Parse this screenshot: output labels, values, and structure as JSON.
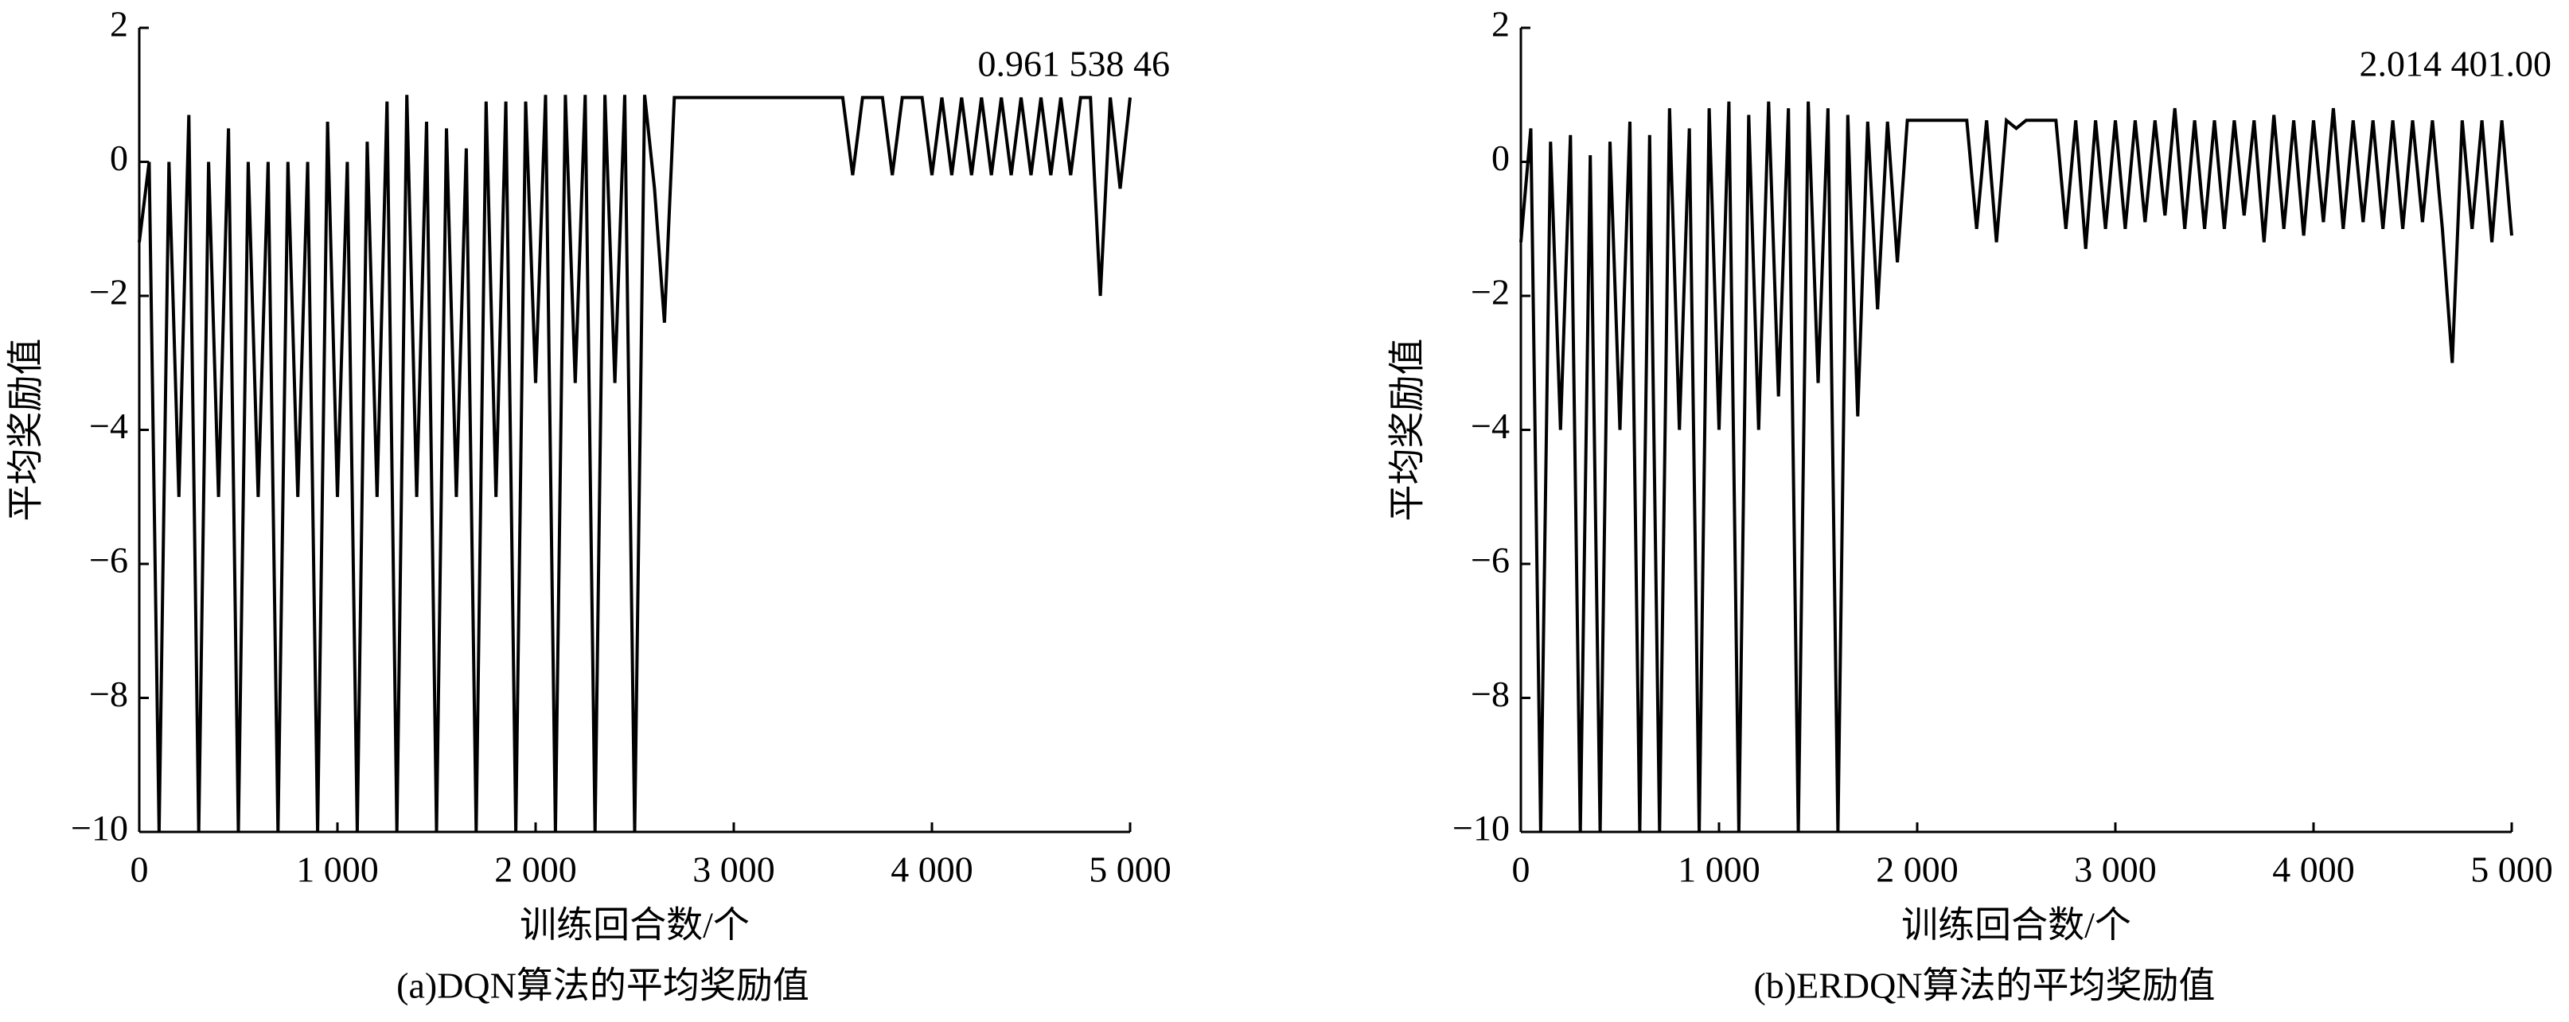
{
  "chart_data": [
    {
      "type": "line",
      "title": "(a)DQN算法的平均奖励值",
      "xlabel": "训练回合数/个",
      "ylabel": "平均奖励值",
      "annotation": "0.961 538 46",
      "color": "#000000",
      "x": [
        0,
        50,
        100,
        150,
        200,
        250,
        300,
        350,
        400,
        450,
        500,
        550,
        600,
        650,
        700,
        750,
        800,
        850,
        900,
        950,
        1000,
        1050,
        1100,
        1150,
        1200,
        1250,
        1300,
        1350,
        1400,
        1450,
        1500,
        1550,
        1600,
        1650,
        1700,
        1750,
        1800,
        1850,
        1900,
        1950,
        2000,
        2050,
        2100,
        2150,
        2200,
        2250,
        2300,
        2350,
        2400,
        2450,
        2500,
        2550,
        2600,
        2650,
        2700,
        2750,
        2800,
        2850,
        2900,
        2950,
        3000,
        3050,
        3100,
        3150,
        3200,
        3250,
        3300,
        3350,
        3400,
        3450,
        3500,
        3550,
        3600,
        3650,
        3700,
        3750,
        3800,
        3850,
        3900,
        3950,
        4000,
        4050,
        4100,
        4150,
        4200,
        4250,
        4300,
        4350,
        4400,
        4450,
        4500,
        4550,
        4600,
        4650,
        4700,
        4750,
        4800,
        4850,
        4900,
        4950,
        5000
      ],
      "values": [
        -1.2,
        0,
        -10,
        0,
        -5,
        0.7,
        -10,
        0,
        -5,
        0.5,
        -10,
        0,
        -5,
        0,
        -10,
        0,
        -5,
        0,
        -10,
        0.6,
        -5,
        0,
        -10,
        0.3,
        -5,
        0.9,
        -10,
        1,
        -5,
        0.6,
        -10,
        0.5,
        -5,
        0.2,
        -10,
        0.9,
        -5,
        0.9,
        -10,
        0.9,
        -3.3,
        1,
        -10,
        1,
        -3.3,
        1,
        -10,
        1,
        -3.3,
        1,
        -10,
        1,
        -0.4,
        -2.4,
        0.96,
        0.96,
        0.96,
        0.96,
        0.96,
        0.96,
        0.96,
        0.96,
        0.96,
        0.96,
        0.96,
        0.96,
        0.96,
        0.96,
        0.96,
        0.96,
        0.96,
        0.96,
        -0.2,
        0.96,
        0.96,
        0.96,
        -0.2,
        0.96,
        0.96,
        0.96,
        -0.2,
        0.96,
        -0.2,
        0.96,
        -0.2,
        0.96,
        -0.2,
        0.96,
        -0.2,
        0.96,
        -0.2,
        0.96,
        -0.2,
        0.96,
        -0.2,
        0.96,
        0.96,
        -2,
        0.96,
        -0.4,
        0.96
      ],
      "xlim": [
        0,
        5000
      ],
      "xticks": [
        0,
        {
          "value": 1000,
          "label": "1 000"
        },
        {
          "value": 2000,
          "label": "2 000"
        },
        {
          "value": 3000,
          "label": "3 000"
        },
        {
          "value": 4000,
          "label": "4 000"
        },
        {
          "value": 5000,
          "label": "5 000"
        }
      ],
      "ylim": [
        -10,
        2
      ],
      "yticks": [
        {
          "value": -10,
          "label": "−10"
        },
        {
          "value": -8,
          "label": "−8"
        },
        {
          "value": -6,
          "label": "−6"
        },
        {
          "value": -4,
          "label": "−4"
        },
        {
          "value": -2,
          "label": "−2"
        },
        0,
        2
      ]
    },
    {
      "type": "line",
      "title": "(b)ERDQN算法的平均奖励值",
      "xlabel": "训练回合数/个",
      "ylabel": "平均奖励值",
      "annotation": "2.014 401.00",
      "color": "#000000",
      "x": [
        0,
        50,
        100,
        150,
        200,
        250,
        300,
        350,
        400,
        450,
        500,
        550,
        600,
        650,
        700,
        750,
        800,
        850,
        900,
        950,
        1000,
        1050,
        1100,
        1150,
        1200,
        1250,
        1300,
        1350,
        1400,
        1450,
        1500,
        1550,
        1600,
        1650,
        1700,
        1750,
        1800,
        1850,
        1900,
        1950,
        2000,
        2050,
        2100,
        2150,
        2200,
        2250,
        2300,
        2350,
        2400,
        2450,
        2500,
        2550,
        2600,
        2650,
        2700,
        2750,
        2800,
        2850,
        2900,
        2950,
        3000,
        3050,
        3100,
        3150,
        3200,
        3250,
        3300,
        3350,
        3400,
        3450,
        3500,
        3550,
        3600,
        3650,
        3700,
        3750,
        3800,
        3850,
        3900,
        3950,
        4000,
        4050,
        4100,
        4150,
        4200,
        4250,
        4300,
        4350,
        4400,
        4450,
        4500,
        4550,
        4600,
        4650,
        4700,
        4750,
        4800,
        4850,
        4900,
        4950,
        5000
      ],
      "values": [
        -1.2,
        0.5,
        -10,
        0.3,
        -4,
        0.4,
        -10,
        0.1,
        -10,
        0.3,
        -4,
        0.6,
        -10,
        0.4,
        -10,
        0.8,
        -4,
        0.5,
        -10,
        0.8,
        -4,
        0.9,
        -10,
        0.7,
        -4,
        0.9,
        -3.5,
        0.8,
        -10,
        0.9,
        -3.3,
        0.8,
        -10,
        0.7,
        -3.8,
        0.6,
        -2.2,
        0.6,
        -1.5,
        0.62,
        0.62,
        0.62,
        0.62,
        0.62,
        0.62,
        0.62,
        -1,
        0.62,
        -1.2,
        0.62,
        0.5,
        0.62,
        0.62,
        0.62,
        0.62,
        -1,
        0.62,
        -1.3,
        0.62,
        -1,
        0.62,
        -1,
        0.62,
        -0.9,
        0.62,
        -0.8,
        0.8,
        -1,
        0.62,
        -1,
        0.62,
        -1,
        0.62,
        -0.8,
        0.62,
        -1.2,
        0.7,
        -1,
        0.62,
        -1.1,
        0.62,
        -0.9,
        0.8,
        -1,
        0.62,
        -0.9,
        0.62,
        -1,
        0.62,
        -1,
        0.62,
        -0.9,
        0.62,
        -1,
        -3,
        0.62,
        -1,
        0.62,
        -1.2,
        0.62,
        -1.1
      ],
      "xlim": [
        0,
        5000
      ],
      "xticks": [
        0,
        {
          "value": 1000,
          "label": "1 000"
        },
        {
          "value": 2000,
          "label": "2 000"
        },
        {
          "value": 3000,
          "label": "3 000"
        },
        {
          "value": 4000,
          "label": "4 000"
        },
        {
          "value": 5000,
          "label": "5 000"
        }
      ],
      "ylim": [
        -10,
        2
      ],
      "yticks": [
        {
          "value": -10,
          "label": "−10"
        },
        {
          "value": -8,
          "label": "−8"
        },
        {
          "value": -6,
          "label": "−6"
        },
        {
          "value": -4,
          "label": "−4"
        },
        {
          "value": -2,
          "label": "−2"
        },
        0,
        2
      ]
    }
  ]
}
